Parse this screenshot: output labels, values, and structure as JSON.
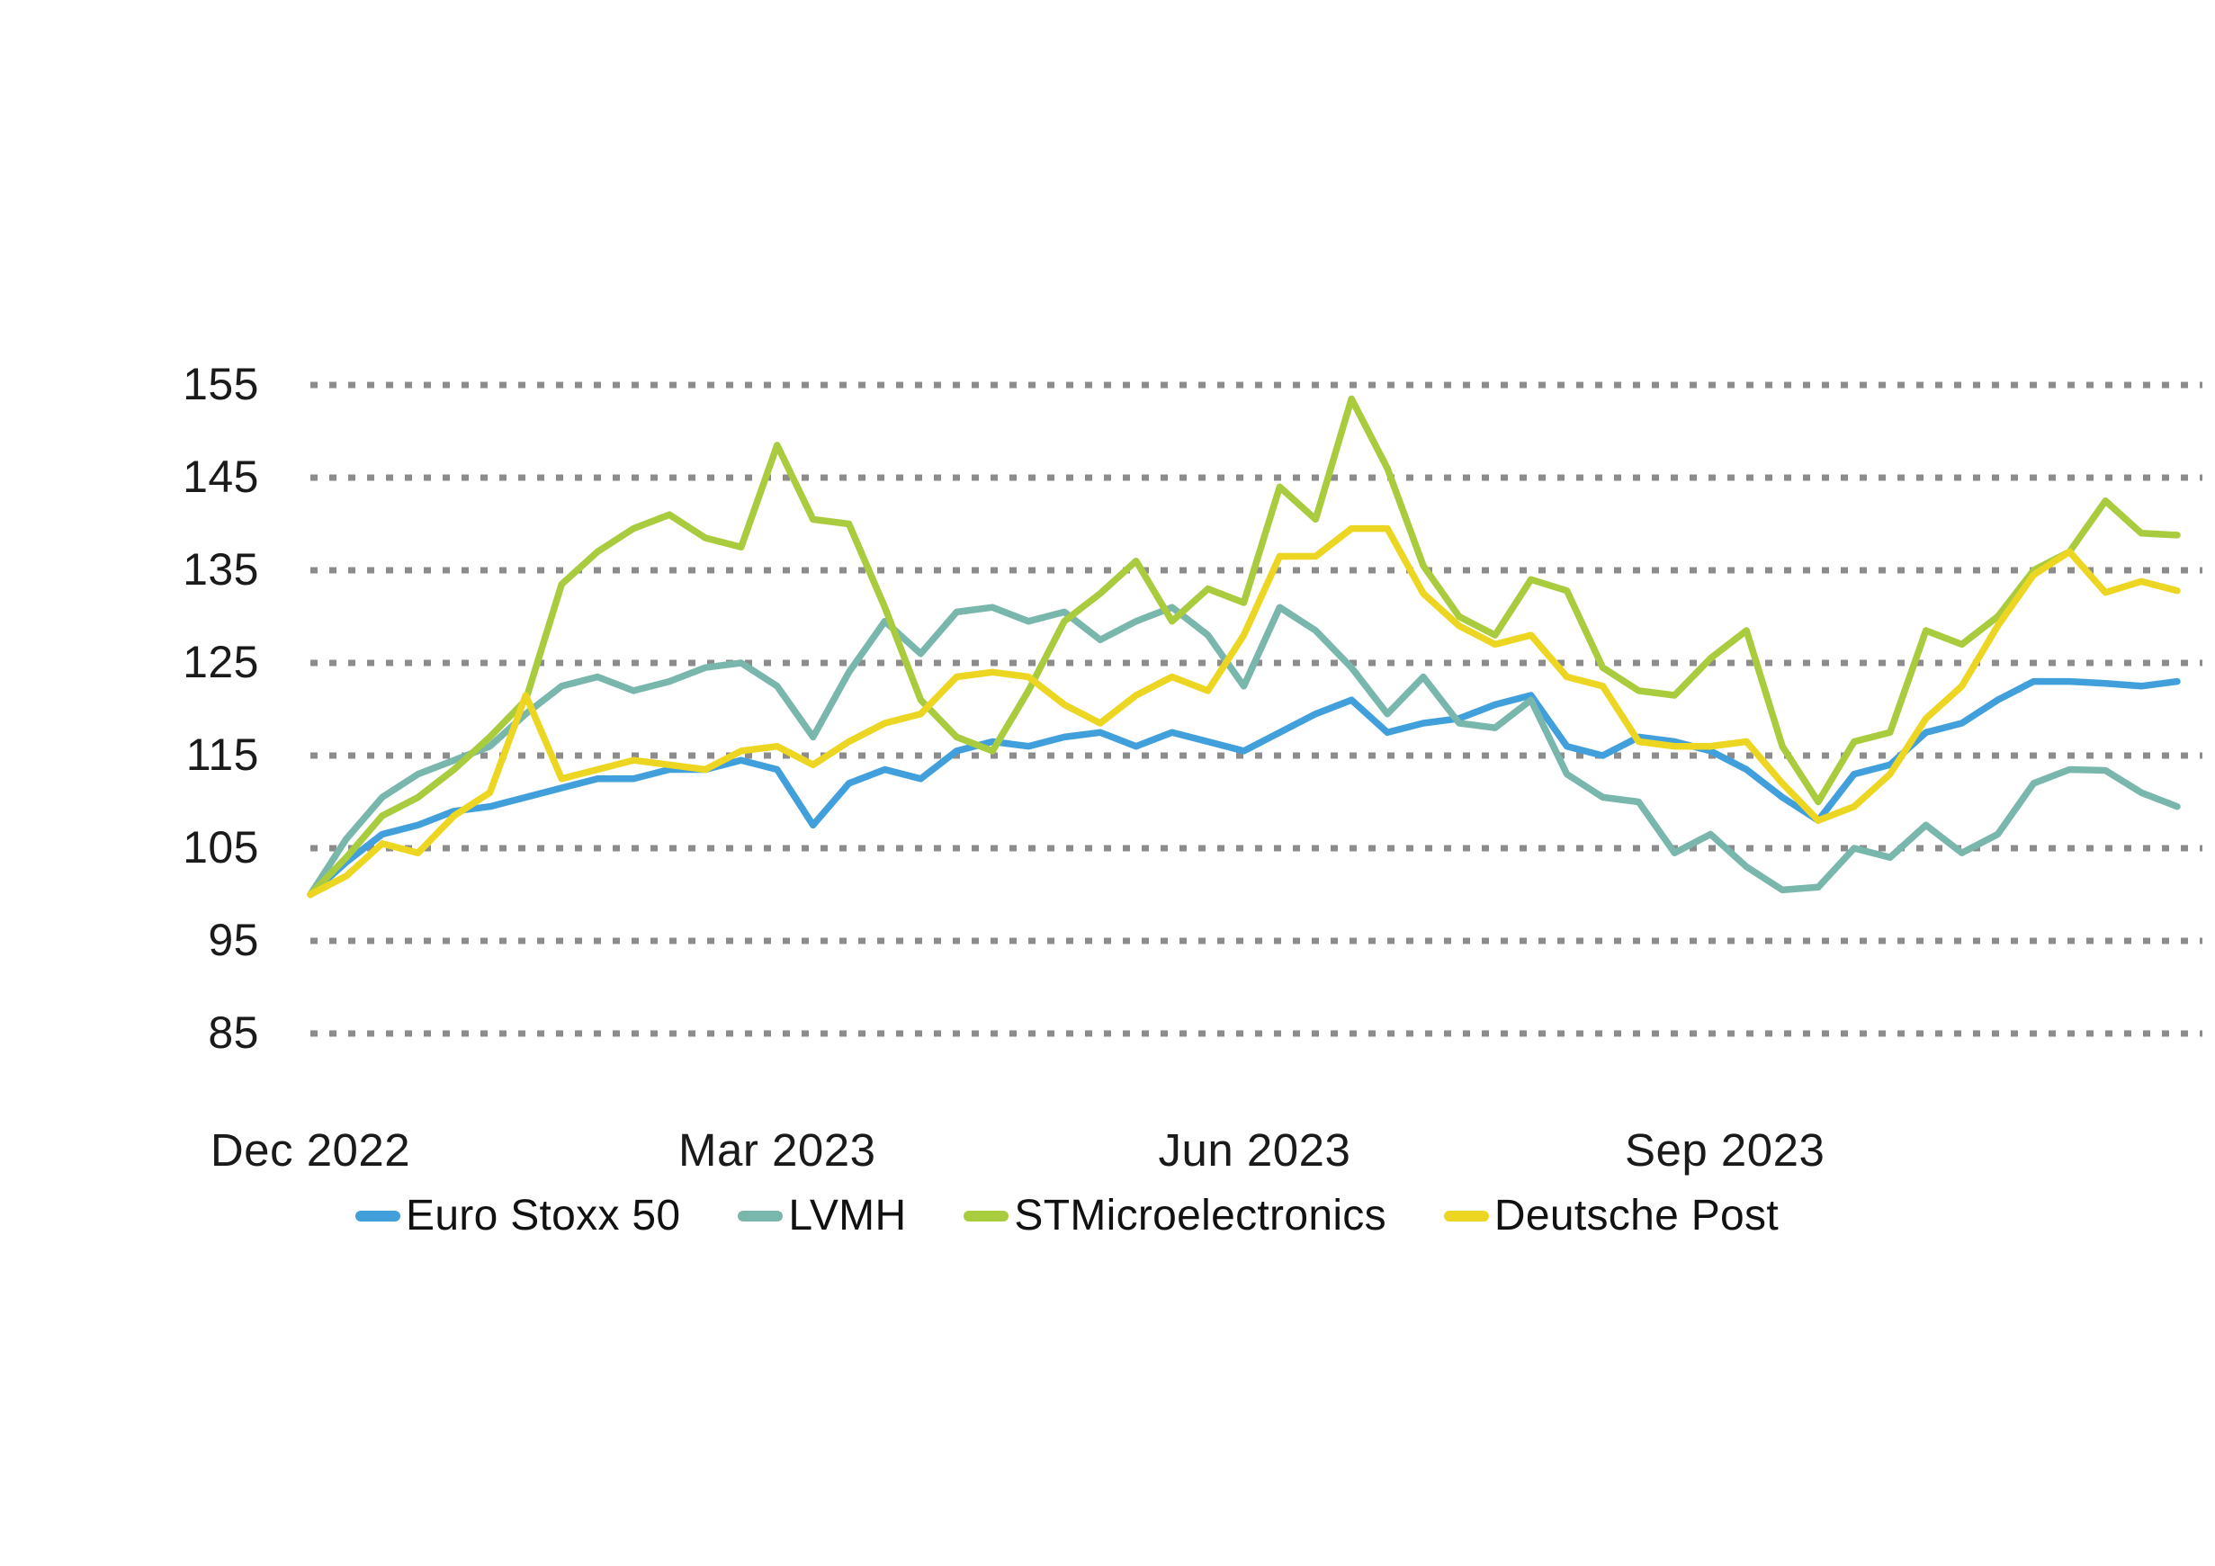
{
  "page": {
    "background": "#ffffff"
  },
  "chart_data": {
    "type": "line",
    "title": "",
    "xlabel": "",
    "ylabel": "",
    "ylim": [
      85,
      155
    ],
    "grid": "horizontal dotted",
    "gridline_color": "#8c8c8c",
    "tick_label_color": "#1a1a1a",
    "legend_position": "bottom",
    "y_ticks": [
      155,
      145,
      135,
      125,
      115,
      105,
      95,
      85
    ],
    "x_tick_labels": [
      "Dec 2022",
      "Mar 2023",
      "Jun 2023",
      "Sep 2023"
    ],
    "x_tick_indices": [
      0,
      13,
      26.3,
      39.4
    ],
    "x_description": "weekly points, Dec 2022 through early Dec 2023, all series indexed to 100",
    "series": [
      {
        "name": "Euro Stoxx 50",
        "color": "#41a0dc",
        "values": [
          100,
          103.5,
          106.5,
          107.5,
          109,
          109.5,
          110.5,
          111.5,
          112.5,
          112.5,
          113.5,
          113.5,
          114.5,
          113.5,
          107.5,
          112,
          113.5,
          112.5,
          115.5,
          116.5,
          116,
          117,
          117.5,
          116,
          117.5,
          116.5,
          115.5,
          117.5,
          119.5,
          121,
          117.5,
          118.5,
          119,
          120.5,
          121.5,
          116,
          115,
          117,
          116.5,
          115.5,
          113.5,
          110.5,
          108,
          113,
          114,
          117.5,
          118.5,
          121,
          123,
          123,
          122.8,
          122.5,
          123
        ]
      },
      {
        "name": "LVMH",
        "color": "#79b7ac",
        "values": [
          100,
          106,
          110.5,
          113,
          114.5,
          116,
          119.5,
          122.5,
          123.5,
          122,
          123,
          124.5,
          125,
          122.5,
          117,
          124,
          129.5,
          126,
          130.5,
          131,
          129.5,
          130.5,
          127.5,
          129.5,
          131,
          128,
          122.5,
          131,
          128.5,
          124.5,
          119.5,
          123.5,
          118.5,
          118,
          121,
          113,
          110.5,
          110,
          104.5,
          106.5,
          103,
          100.5,
          100.8,
          105,
          104,
          107.5,
          104.5,
          106.5,
          112,
          113.5,
          113.4,
          111,
          109.5
        ]
      },
      {
        "name": "STMicroelectronics",
        "color": "#a8cc3d",
        "values": [
          100,
          104,
          108.5,
          110.5,
          113.5,
          117,
          121,
          133.5,
          137,
          139.5,
          141,
          138.5,
          137.5,
          148.5,
          140.5,
          140,
          131,
          121,
          117,
          115.5,
          122,
          129.5,
          132.5,
          136,
          129.5,
          133,
          131.5,
          144,
          140.5,
          153.5,
          146,
          135.5,
          130,
          128,
          134,
          132.8,
          124.5,
          122,
          121.5,
          125.5,
          128.5,
          116,
          110,
          116.5,
          117.5,
          128.5,
          127,
          130,
          135,
          137,
          142.5,
          139,
          138.8
        ]
      },
      {
        "name": "Deutsche Post",
        "color": "#edd621",
        "values": [
          100,
          102,
          105.5,
          104.5,
          108.5,
          111,
          121.5,
          112.5,
          113.5,
          114.5,
          114,
          113.5,
          115.5,
          116,
          114,
          116.5,
          118.5,
          119.5,
          123.5,
          124,
          123.5,
          120.5,
          118.5,
          121.5,
          123.5,
          122,
          128,
          136.5,
          136.5,
          139.5,
          139.5,
          132.5,
          129,
          127,
          128,
          123.5,
          122.5,
          116.5,
          116,
          116,
          116.5,
          112,
          108,
          109.5,
          113,
          119,
          122.5,
          129,
          134.5,
          137,
          132.6,
          133.8,
          132.8
        ]
      }
    ]
  },
  "legend": {
    "items": [
      {
        "label": "Euro Stoxx 50",
        "color": "#41a0dc"
      },
      {
        "label": "LVMH",
        "color": "#79b7ac"
      },
      {
        "label": "STMicroelectronics",
        "color": "#a8cc3d"
      },
      {
        "label": "Deutsche Post",
        "color": "#edd621"
      }
    ]
  }
}
